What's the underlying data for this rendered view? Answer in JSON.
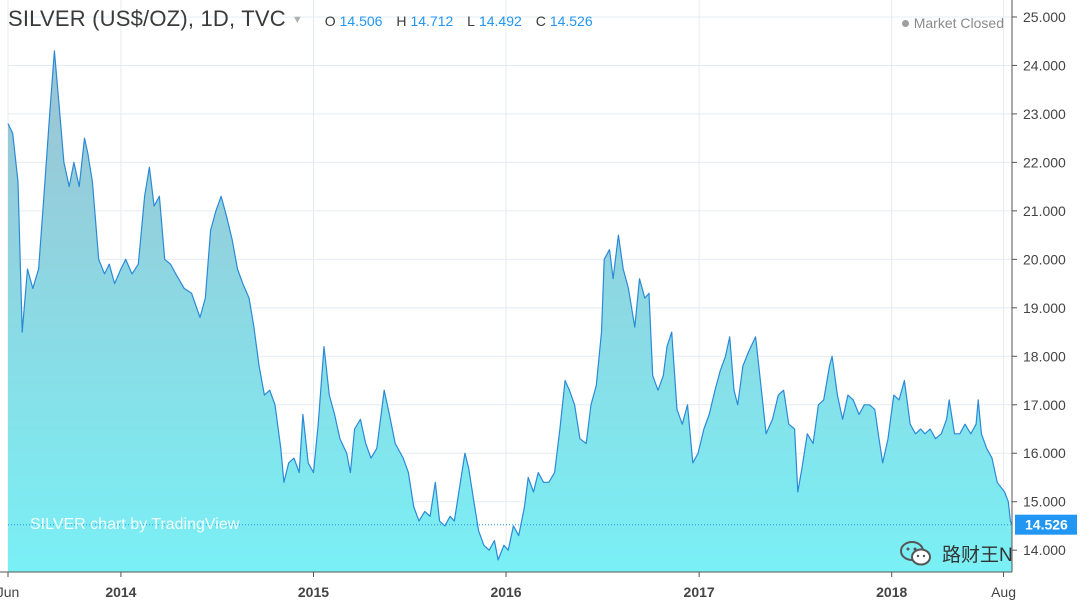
{
  "header": {
    "symbol": "SILVER (US$/OZ), 1D, TVC",
    "open_key": "O",
    "open": "14.506",
    "high_key": "H",
    "high": "14.712",
    "low_key": "L",
    "low": "14.492",
    "close_key": "C",
    "close": "14.526",
    "market_status": "Market Closed"
  },
  "watermark": "SILVER chart by TradingView",
  "brand": "路财王N",
  "icons": {
    "dropdown": "chevron-down-icon",
    "status": "status-dot-icon",
    "brand": "wechat-icon"
  },
  "colors": {
    "line": "#2a8ad6",
    "price_tag": "#2196f3",
    "fill_top": "#9ec2d2",
    "fill_bottom": "#79f0f5"
  },
  "chart_data": {
    "type": "area",
    "title": "SILVER (US$/OZ), 1D, TVC",
    "xlabel": "",
    "ylabel": "",
    "ylim": [
      13.55,
      25.35
    ],
    "yticks": [
      "25.000",
      "24.000",
      "23.000",
      "22.000",
      "21.000",
      "20.000",
      "19.000",
      "18.000",
      "17.000",
      "16.000",
      "15.000",
      "14.000"
    ],
    "xticks": [
      {
        "label": "Jun",
        "date": "2013-06-01",
        "bold": false
      },
      {
        "label": "2014",
        "date": "2014-01-01",
        "bold": true
      },
      {
        "label": "2015",
        "date": "2015-01-01",
        "bold": true
      },
      {
        "label": "2016",
        "date": "2016-01-01",
        "bold": true
      },
      {
        "label": "2017",
        "date": "2017-01-01",
        "bold": true
      },
      {
        "label": "2018",
        "date": "2018-01-01",
        "bold": true
      },
      {
        "label": "Aug",
        "date": "2018-08-01",
        "bold": false
      }
    ],
    "x_range": [
      "2013-06-01",
      "2018-08-17"
    ],
    "last_price": 14.526,
    "last_price_label": "14.526",
    "grid": true,
    "series": [
      {
        "points": [
          [
            "2013-06-01",
            22.8
          ],
          [
            "2013-06-10",
            22.6
          ],
          [
            "2013-06-20",
            21.6
          ],
          [
            "2013-06-28",
            18.5
          ],
          [
            "2013-07-08",
            19.8
          ],
          [
            "2013-07-18",
            19.4
          ],
          [
            "2013-07-29",
            19.8
          ],
          [
            "2013-08-08",
            21.3
          ],
          [
            "2013-08-19",
            23.0
          ],
          [
            "2013-08-28",
            24.3
          ],
          [
            "2013-09-05",
            23.3
          ],
          [
            "2013-09-15",
            22.0
          ],
          [
            "2013-09-25",
            21.5
          ],
          [
            "2013-10-04",
            22.0
          ],
          [
            "2013-10-14",
            21.5
          ],
          [
            "2013-10-24",
            22.5
          ],
          [
            "2013-10-30",
            22.2
          ],
          [
            "2013-11-08",
            21.6
          ],
          [
            "2013-11-20",
            20.0
          ],
          [
            "2013-12-01",
            19.7
          ],
          [
            "2013-12-10",
            19.9
          ],
          [
            "2013-12-20",
            19.5
          ],
          [
            "2014-01-01",
            19.8
          ],
          [
            "2014-01-10",
            20.0
          ],
          [
            "2014-01-22",
            19.7
          ],
          [
            "2014-02-03",
            19.9
          ],
          [
            "2014-02-15",
            21.3
          ],
          [
            "2014-02-24",
            21.9
          ],
          [
            "2014-03-05",
            21.1
          ],
          [
            "2014-03-15",
            21.3
          ],
          [
            "2014-03-25",
            20.0
          ],
          [
            "2014-04-05",
            19.9
          ],
          [
            "2014-04-15",
            19.7
          ],
          [
            "2014-05-01",
            19.4
          ],
          [
            "2014-05-15",
            19.3
          ],
          [
            "2014-05-31",
            18.8
          ],
          [
            "2014-06-10",
            19.2
          ],
          [
            "2014-06-20",
            20.6
          ],
          [
            "2014-06-30",
            21.0
          ],
          [
            "2014-07-10",
            21.3
          ],
          [
            "2014-07-20",
            20.9
          ],
          [
            "2014-07-31",
            20.4
          ],
          [
            "2014-08-10",
            19.8
          ],
          [
            "2014-08-20",
            19.5
          ],
          [
            "2014-09-01",
            19.2
          ],
          [
            "2014-09-10",
            18.6
          ],
          [
            "2014-09-20",
            17.8
          ],
          [
            "2014-09-30",
            17.2
          ],
          [
            "2014-10-10",
            17.3
          ],
          [
            "2014-10-20",
            17.0
          ],
          [
            "2014-10-31",
            16.1
          ],
          [
            "2014-11-06",
            15.4
          ],
          [
            "2014-11-15",
            15.8
          ],
          [
            "2014-11-25",
            15.9
          ],
          [
            "2014-12-05",
            15.6
          ],
          [
            "2014-12-12",
            16.8
          ],
          [
            "2014-12-22",
            15.8
          ],
          [
            "2015-01-01",
            15.6
          ],
          [
            "2015-01-10",
            16.6
          ],
          [
            "2015-01-21",
            18.2
          ],
          [
            "2015-01-31",
            17.2
          ],
          [
            "2015-02-10",
            16.8
          ],
          [
            "2015-02-20",
            16.3
          ],
          [
            "2015-03-05",
            16.0
          ],
          [
            "2015-03-12",
            15.6
          ],
          [
            "2015-03-20",
            16.5
          ],
          [
            "2015-03-31",
            16.7
          ],
          [
            "2015-04-10",
            16.2
          ],
          [
            "2015-04-20",
            15.9
          ],
          [
            "2015-05-01",
            16.1
          ],
          [
            "2015-05-15",
            17.3
          ],
          [
            "2015-05-25",
            16.8
          ],
          [
            "2015-06-05",
            16.2
          ],
          [
            "2015-06-20",
            15.9
          ],
          [
            "2015-06-30",
            15.6
          ],
          [
            "2015-07-10",
            14.9
          ],
          [
            "2015-07-20",
            14.6
          ],
          [
            "2015-07-31",
            14.8
          ],
          [
            "2015-08-10",
            14.7
          ],
          [
            "2015-08-20",
            15.4
          ],
          [
            "2015-08-28",
            14.6
          ],
          [
            "2015-09-07",
            14.5
          ],
          [
            "2015-09-17",
            14.7
          ],
          [
            "2015-09-25",
            14.6
          ],
          [
            "2015-10-05",
            15.3
          ],
          [
            "2015-10-15",
            16.0
          ],
          [
            "2015-10-22",
            15.7
          ],
          [
            "2015-11-01",
            15.0
          ],
          [
            "2015-11-10",
            14.4
          ],
          [
            "2015-11-20",
            14.1
          ],
          [
            "2015-11-30",
            14.0
          ],
          [
            "2015-12-10",
            14.2
          ],
          [
            "2015-12-17",
            13.8
          ],
          [
            "2015-12-28",
            14.1
          ],
          [
            "2016-01-05",
            14.0
          ],
          [
            "2016-01-15",
            14.5
          ],
          [
            "2016-01-25",
            14.3
          ],
          [
            "2016-02-05",
            14.9
          ],
          [
            "2016-02-12",
            15.5
          ],
          [
            "2016-02-22",
            15.2
          ],
          [
            "2016-03-02",
            15.6
          ],
          [
            "2016-03-12",
            15.4
          ],
          [
            "2016-03-22",
            15.4
          ],
          [
            "2016-04-02",
            15.6
          ],
          [
            "2016-04-12",
            16.5
          ],
          [
            "2016-04-22",
            17.5
          ],
          [
            "2016-04-30",
            17.3
          ],
          [
            "2016-05-10",
            17.0
          ],
          [
            "2016-05-20",
            16.3
          ],
          [
            "2016-06-01",
            16.2
          ],
          [
            "2016-06-10",
            17.0
          ],
          [
            "2016-06-20",
            17.4
          ],
          [
            "2016-06-30",
            18.5
          ],
          [
            "2016-07-05",
            20.0
          ],
          [
            "2016-07-15",
            20.2
          ],
          [
            "2016-07-22",
            19.6
          ],
          [
            "2016-08-01",
            20.5
          ],
          [
            "2016-08-10",
            19.8
          ],
          [
            "2016-08-20",
            19.4
          ],
          [
            "2016-09-01",
            18.6
          ],
          [
            "2016-09-10",
            19.6
          ],
          [
            "2016-09-20",
            19.2
          ],
          [
            "2016-09-28",
            19.3
          ],
          [
            "2016-10-05",
            17.6
          ],
          [
            "2016-10-15",
            17.3
          ],
          [
            "2016-10-25",
            17.6
          ],
          [
            "2016-11-01",
            18.2
          ],
          [
            "2016-11-10",
            18.5
          ],
          [
            "2016-11-20",
            16.9
          ],
          [
            "2016-11-30",
            16.6
          ],
          [
            "2016-12-10",
            17.0
          ],
          [
            "2016-12-20",
            15.8
          ],
          [
            "2016-12-30",
            16.0
          ],
          [
            "2017-01-10",
            16.5
          ],
          [
            "2017-01-20",
            16.8
          ],
          [
            "2017-01-31",
            17.3
          ],
          [
            "2017-02-10",
            17.7
          ],
          [
            "2017-02-20",
            18.0
          ],
          [
            "2017-02-28",
            18.4
          ],
          [
            "2017-03-08",
            17.3
          ],
          [
            "2017-03-15",
            17.0
          ],
          [
            "2017-03-25",
            17.8
          ],
          [
            "2017-04-05",
            18.1
          ],
          [
            "2017-04-18",
            18.4
          ],
          [
            "2017-04-28",
            17.4
          ],
          [
            "2017-05-08",
            16.4
          ],
          [
            "2017-05-20",
            16.7
          ],
          [
            "2017-05-31",
            17.2
          ],
          [
            "2017-06-10",
            17.3
          ],
          [
            "2017-06-20",
            16.6
          ],
          [
            "2017-07-01",
            16.5
          ],
          [
            "2017-07-07",
            15.2
          ],
          [
            "2017-07-15",
            15.7
          ],
          [
            "2017-07-25",
            16.4
          ],
          [
            "2017-08-05",
            16.2
          ],
          [
            "2017-08-15",
            17.0
          ],
          [
            "2017-08-25",
            17.1
          ],
          [
            "2017-09-05",
            17.8
          ],
          [
            "2017-09-10",
            18.0
          ],
          [
            "2017-09-20",
            17.2
          ],
          [
            "2017-09-30",
            16.7
          ],
          [
            "2017-10-10",
            17.2
          ],
          [
            "2017-10-20",
            17.1
          ],
          [
            "2017-10-31",
            16.8
          ],
          [
            "2017-11-10",
            17.0
          ],
          [
            "2017-11-20",
            17.0
          ],
          [
            "2017-11-30",
            16.9
          ],
          [
            "2017-12-08",
            16.3
          ],
          [
            "2017-12-15",
            15.8
          ],
          [
            "2017-12-25",
            16.3
          ],
          [
            "2018-01-05",
            17.2
          ],
          [
            "2018-01-15",
            17.1
          ],
          [
            "2018-01-25",
            17.5
          ],
          [
            "2018-02-05",
            16.6
          ],
          [
            "2018-02-15",
            16.4
          ],
          [
            "2018-02-25",
            16.5
          ],
          [
            "2018-03-05",
            16.4
          ],
          [
            "2018-03-15",
            16.5
          ],
          [
            "2018-03-25",
            16.3
          ],
          [
            "2018-04-05",
            16.4
          ],
          [
            "2018-04-15",
            16.7
          ],
          [
            "2018-04-20",
            17.1
          ],
          [
            "2018-04-30",
            16.4
          ],
          [
            "2018-05-10",
            16.4
          ],
          [
            "2018-05-20",
            16.6
          ],
          [
            "2018-05-31",
            16.4
          ],
          [
            "2018-06-10",
            16.6
          ],
          [
            "2018-06-14",
            17.1
          ],
          [
            "2018-06-20",
            16.4
          ],
          [
            "2018-06-30",
            16.1
          ],
          [
            "2018-07-10",
            15.9
          ],
          [
            "2018-07-20",
            15.4
          ],
          [
            "2018-07-27",
            15.3
          ],
          [
            "2018-08-03",
            15.2
          ],
          [
            "2018-08-10",
            15.0
          ],
          [
            "2018-08-14",
            14.6
          ],
          [
            "2018-08-17",
            14.53
          ]
        ]
      }
    ]
  }
}
